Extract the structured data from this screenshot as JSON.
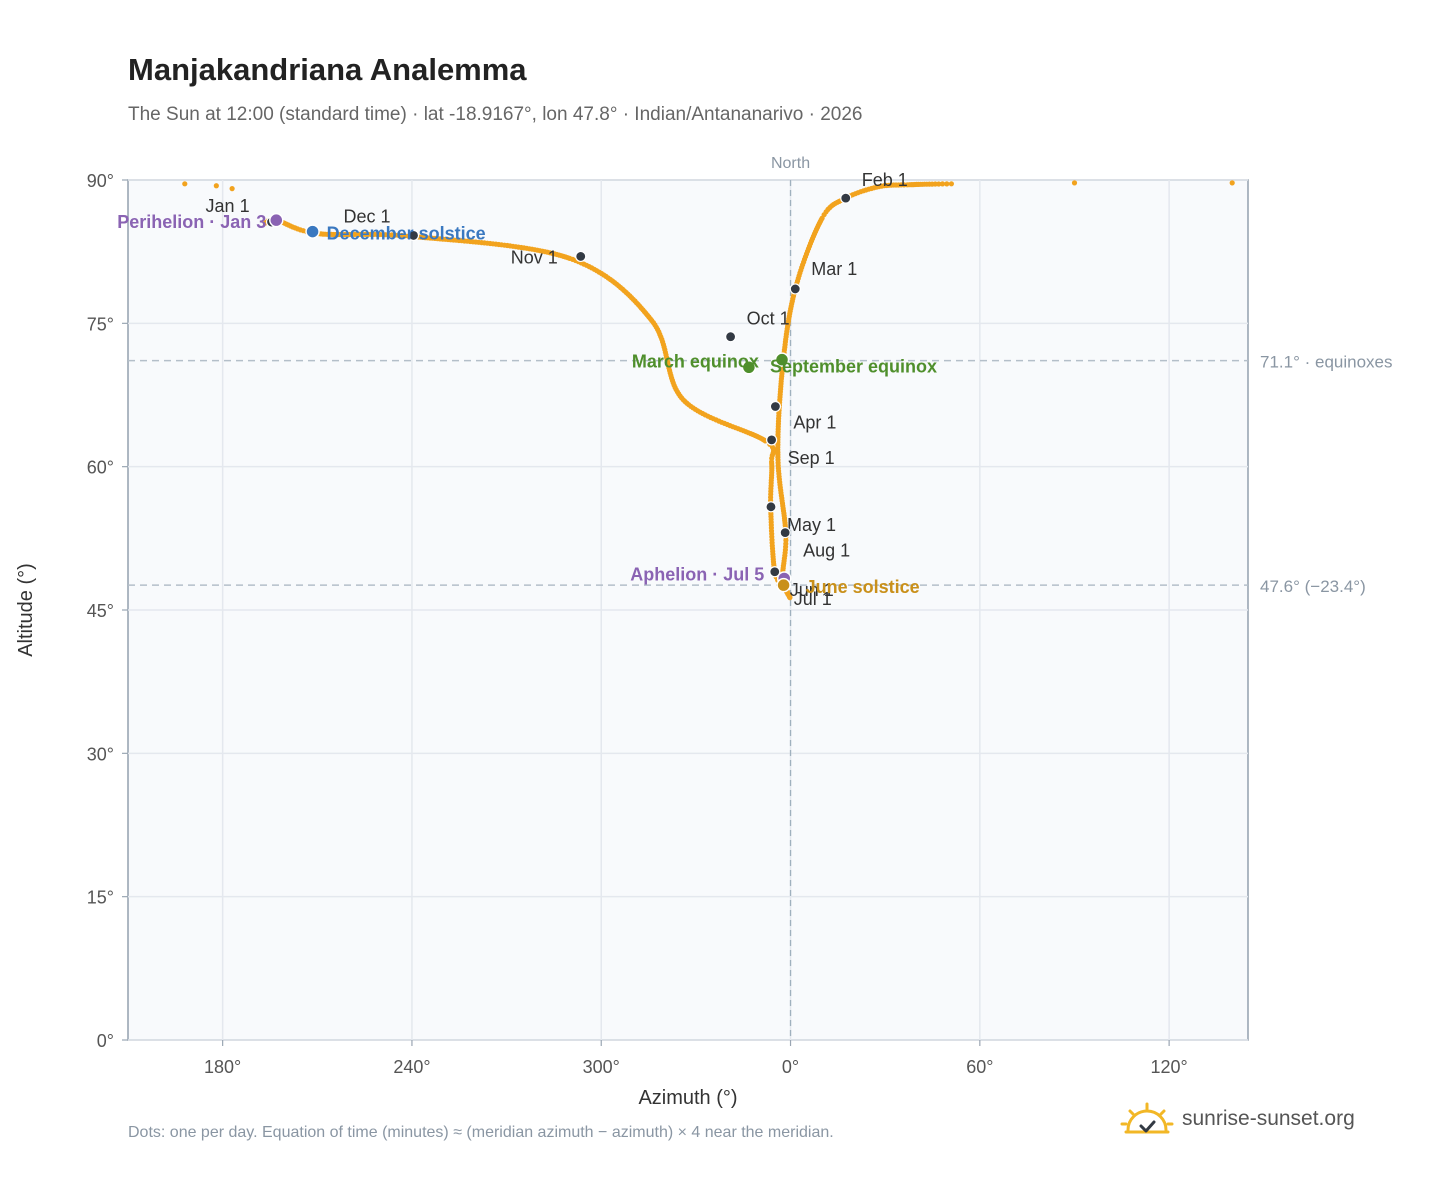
{
  "title": "Manjakandriana Analemma",
  "subtitle": "The Sun at 12:00 (standard time) · lat -18.9167°, lon 47.8° · Indian/Antananarivo · 2026",
  "footnote": "Dots: one per day. Equation of time (minutes) ≈ (meridian azimuth − azimuth) × 4 near the meridian.",
  "brand": {
    "name": "sunrise-sunset.org",
    "icon": "sun-check-icon"
  },
  "colors": {
    "path": "#f2a31e",
    "month": "#333a44",
    "equinox": "#4f8f2c",
    "december": "#3a78c0",
    "june": "#c9901a",
    "apsis": "#8a63b3",
    "plot_bg": "#f8fafc",
    "grid": "#e4e8ee"
  },
  "chart_data": {
    "type": "scatter",
    "xlabel": "Azimuth (°)",
    "ylabel": "Altitude (°)",
    "north_label": "North",
    "x_domain": [
      150,
      145
    ],
    "x_note": "azimuth axis wraps through 360/0 with North centered",
    "ylim": [
      0,
      90
    ],
    "x_ticks": [
      "180°",
      "240°",
      "300°",
      "0°",
      "60°",
      "120°"
    ],
    "x_tick_values": [
      180,
      240,
      300,
      0,
      60,
      120
    ],
    "y_ticks": [
      "0°",
      "15°",
      "30°",
      "45°",
      "60°",
      "75°",
      "90°"
    ],
    "y_tick_values": [
      0,
      15,
      30,
      45,
      60,
      75,
      90
    ],
    "grid": true,
    "reference_lines": [
      {
        "altitude": 71.1,
        "label": "71.1° · equinoxes"
      },
      {
        "altitude": 47.6,
        "label": "47.6° (−23.4°)"
      }
    ],
    "analemma_keypoints": [
      {
        "az": 193.5,
        "alt": 85.5
      },
      {
        "az": 197,
        "alt": 85.8
      },
      {
        "az": 210,
        "alt": 84.4
      },
      {
        "az": 240,
        "alt": 84.1
      },
      {
        "az": 290,
        "alt": 81.8
      },
      {
        "az": 316,
        "alt": 75.3
      },
      {
        "az": 326,
        "alt": 67
      },
      {
        "az": 352,
        "alt": 62.7
      },
      {
        "az": 354,
        "alt": 60.5
      },
      {
        "az": 353.7,
        "alt": 55.8
      },
      {
        "az": 355,
        "alt": 49
      },
      {
        "az": 358,
        "alt": 47.6
      },
      {
        "az": 359.8,
        "alt": 46.3
      },
      {
        "az": 357.5,
        "alt": 48.3
      },
      {
        "az": 358.5,
        "alt": 53
      },
      {
        "az": 356,
        "alt": 61
      },
      {
        "az": 357.5,
        "alt": 70.5
      },
      {
        "az": 1.5,
        "alt": 78.6
      },
      {
        "az": 10,
        "alt": 86
      },
      {
        "az": 17.5,
        "alt": 88.1
      },
      {
        "az": 28,
        "alt": 89.3
      },
      {
        "az": 37,
        "alt": 89.5
      },
      {
        "az": 51,
        "alt": 89.6
      },
      {
        "az": 90,
        "alt": 89.7
      },
      {
        "az": 140,
        "alt": 89.7
      }
    ],
    "sparse_points_left": [
      {
        "az": 168,
        "alt": 89.6
      },
      {
        "az": 178,
        "alt": 89.4
      },
      {
        "az": 183,
        "alt": 89.1
      }
    ],
    "month_points": [
      {
        "label": "Jan 1",
        "az": 195.5,
        "alt": 85.6
      },
      {
        "label": "Feb 1",
        "az": 17.5,
        "alt": 88.1
      },
      {
        "label": "Mar 1",
        "az": 1.5,
        "alt": 78.6
      },
      {
        "label": "Apr 1",
        "az": 355.2,
        "alt": 66.3
      },
      {
        "label": "May 1",
        "az": 353.8,
        "alt": 55.8
      },
      {
        "label": "Jun 1",
        "az": 355,
        "alt": 49
      },
      {
        "label": "Jul 1",
        "az": 358.5,
        "alt": 47.6
      },
      {
        "label": "Aug 1",
        "az": 358.3,
        "alt": 53.1
      },
      {
        "label": "Sep 1",
        "az": 354,
        "alt": 62.8
      },
      {
        "label": "Oct 1",
        "az": 341,
        "alt": 73.6
      },
      {
        "label": "Nov 1",
        "az": 293.5,
        "alt": 82
      },
      {
        "label": "Dec 1",
        "az": 240.5,
        "alt": 84.2
      }
    ],
    "events": [
      {
        "label": "Perihelion · Jan 3",
        "az": 197,
        "alt": 85.8,
        "kind": "apsis"
      },
      {
        "label": "December solstice",
        "az": 208.5,
        "alt": 84.6,
        "kind": "december"
      },
      {
        "label": "March equinox",
        "az": 346.8,
        "alt": 70.4,
        "kind": "equinox"
      },
      {
        "label": "September equinox",
        "az": 357.3,
        "alt": 71.2,
        "kind": "equinox"
      },
      {
        "label": "Aphelion · Jul 5",
        "az": 358,
        "alt": 48.3,
        "kind": "apsis"
      },
      {
        "label": "June solstice",
        "az": 357.8,
        "alt": 47.6,
        "kind": "june"
      }
    ]
  }
}
